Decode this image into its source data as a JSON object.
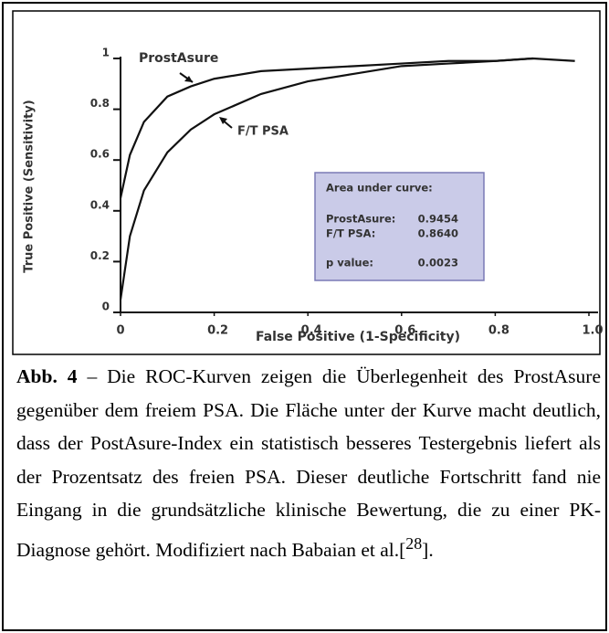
{
  "chart_data": {
    "type": "line",
    "x": [
      0,
      0.02,
      0.05,
      0.1,
      0.15,
      0.2,
      0.3,
      0.4,
      0.5,
      0.6,
      0.7,
      0.8,
      0.88,
      0.97
    ],
    "series": [
      {
        "name": "ProstAsure",
        "color": "#111111",
        "values": [
          0.45,
          0.62,
          0.75,
          0.85,
          0.89,
          0.92,
          0.95,
          0.96,
          0.97,
          0.98,
          0.99,
          0.99,
          1.0,
          0.99
        ]
      },
      {
        "name": "F/T PSA",
        "color": "#111111",
        "values": [
          0.05,
          0.3,
          0.48,
          0.63,
          0.72,
          0.78,
          0.86,
          0.91,
          0.94,
          0.97,
          0.98,
          0.99,
          1.0,
          null
        ]
      }
    ],
    "xlabel": "False Positive (1-Specificity)",
    "ylabel": "True Positive (Sensitivity)",
    "xlim": [
      0,
      1
    ],
    "ylim": [
      0,
      1
    ],
    "xticks": [
      0,
      0.2,
      0.4,
      0.6,
      0.8,
      {
        "value": 1,
        "label": "1.0"
      }
    ],
    "yticks": [
      0,
      0.2,
      0.4,
      0.6,
      0.8,
      1
    ],
    "grid": false,
    "auc_box": {
      "title": "Area under curve:",
      "rows": [
        [
          "ProstAsure:",
          "0.9454"
        ],
        [
          "F/T PSA:",
          "0.8640"
        ],
        [
          "p value:",
          "0.0023"
        ]
      ]
    }
  },
  "caption": {
    "label": "Abb. 4",
    "text": " – Die ROC-Kurven zeigen die Überlegenheit des ProstAsure gegenüber dem freiem PSA. Die Fläche unter der Kurve macht deutlich, dass der PostAsure-Index ein statistisch besseres Testergebnis liefert als der Prozentsatz des freien PSA. Dieser deutliche Fortschritt fand nie Eingang in die grundsätzliche klinische Bewertung, die zu einer PK-Diagnose gehört. Modifiziert nach Babaian et al.[",
    "ref": "28",
    "end": "]."
  }
}
